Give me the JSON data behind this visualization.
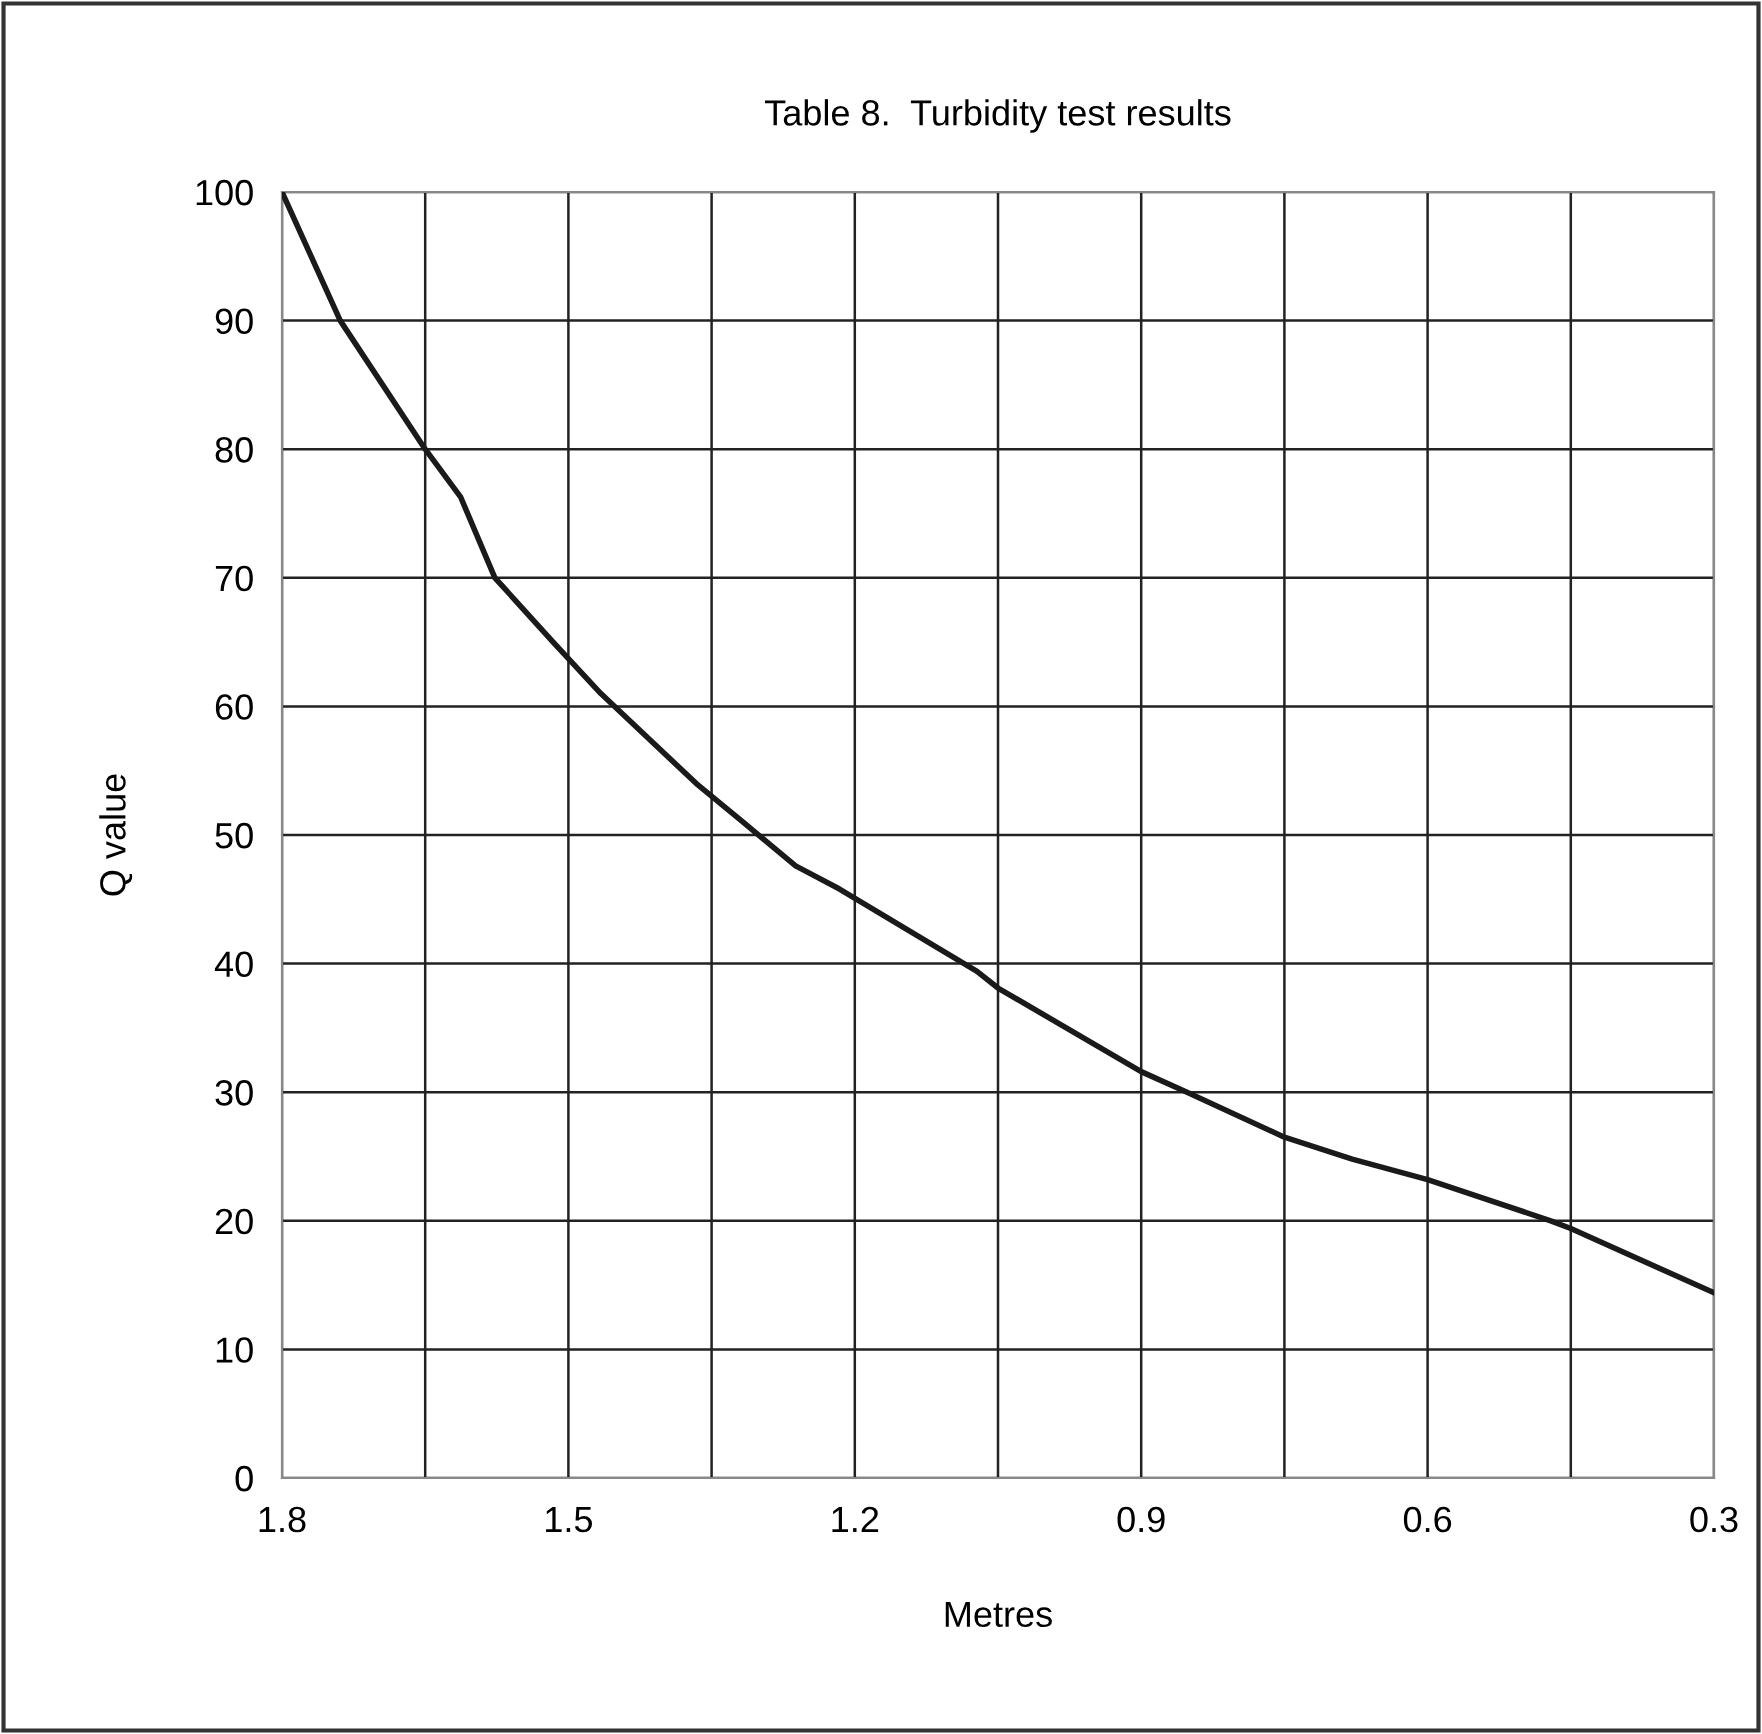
{
  "chart_data": {
    "type": "line",
    "title": "Table 8.  Turbidity test results",
    "xlabel": "Metres",
    "ylabel": "Q value",
    "x": [
      1.8,
      1.739,
      1.65,
      1.613,
      1.577,
      1.516,
      1.466,
      1.366,
      1.317,
      1.262,
      1.216,
      1.072,
      1.05,
      0.9,
      0.852,
      0.75,
      0.679,
      0.6,
      0.471,
      0.45,
      0.3
    ],
    "series": [
      {
        "color": "#1a1a1a",
        "values": [
          100,
          90,
          80,
          76.3,
          70,
          65,
          61,
          54,
          51,
          47.6,
          45.8,
          39.4,
          38.1,
          31.6,
          30,
          26.5,
          24.8,
          23.2,
          20,
          19.4,
          14.4
        ]
      }
    ],
    "xlim": [
      1.8,
      0.3
    ],
    "ylim": [
      0,
      100
    ],
    "xticks": [
      1.8,
      {
        "value": 1.65,
        "label": null
      },
      1.5,
      {
        "value": 1.35,
        "label": null
      },
      1.2,
      {
        "value": 1.05,
        "label": null
      },
      0.9,
      {
        "value": 0.75,
        "label": null
      },
      0.6,
      {
        "value": 0.45,
        "label": null
      },
      0.3
    ],
    "yticks": [
      0,
      10,
      20,
      30,
      40,
      50,
      60,
      70,
      80,
      90,
      100
    ],
    "grid": true,
    "legend": false,
    "marker": "none",
    "line_style": "solid"
  }
}
